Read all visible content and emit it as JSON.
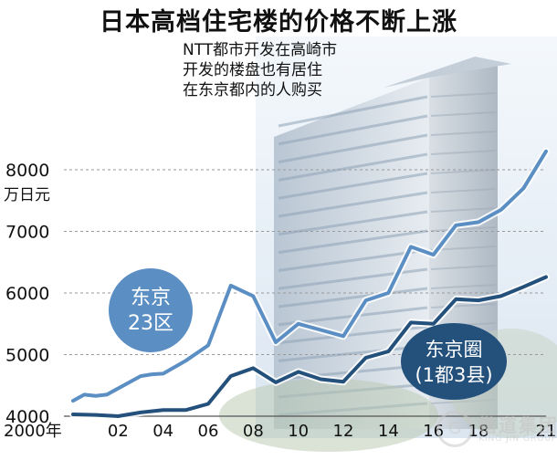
{
  "header": {
    "title": "日本高档住宅楼的价格不断上涨",
    "note_lines": [
      "NTT都市开发在高崎市",
      "开发的楼盘也有居住",
      "在东京都内的人购买"
    ]
  },
  "colors": {
    "tokyo23": "#5b8fc4",
    "tokyo_area": "#24507c",
    "grid": "#9a9a9a",
    "sky": "#dfe9f3"
  },
  "watermark": {
    "glyph": "G",
    "text": "楷道集团",
    "sub": "KING JIN GROUP"
  },
  "chart_data": {
    "type": "line",
    "title": "日本高档住宅楼的价格不断上涨",
    "ylabel": "万日元",
    "xlabel": "",
    "ylim": [
      4000,
      8000
    ],
    "xlim": [
      2000,
      2021
    ],
    "grid": true,
    "yticks": [
      4000,
      5000,
      6000,
      7000,
      8000
    ],
    "ytick_labels": [
      "4000",
      "5000",
      "6000",
      "7000",
      "8000"
    ],
    "xticks": [
      2000,
      2002,
      2004,
      2006,
      2008,
      2010,
      2012,
      2014,
      2016,
      2018,
      2021
    ],
    "xtick_labels": [
      "2000年",
      "02",
      "04",
      "06",
      "08",
      "10",
      "12",
      "14",
      "16",
      "18",
      "21"
    ],
    "series": [
      {
        "name": "东京23区",
        "label_lines": [
          "东京",
          "23区"
        ],
        "x": [
          2000,
          2000.5,
          2001,
          2001.5,
          2002,
          2003,
          2003.5,
          2004,
          2005,
          2006,
          2007,
          2008,
          2009,
          2010,
          2011,
          2012,
          2013,
          2014,
          2015,
          2016,
          2017,
          2018,
          2019,
          2020,
          2021
        ],
        "values": [
          4250,
          4350,
          4330,
          4350,
          4450,
          4650,
          4680,
          4690,
          4900,
          5150,
          6120,
          5950,
          5200,
          5500,
          5400,
          5300,
          5880,
          6000,
          6750,
          6620,
          7100,
          7150,
          7350,
          7700,
          8300
        ]
      },
      {
        "name": "东京圈(1都3县)",
        "label_lines": [
          "东京圈",
          "(1都3县)"
        ],
        "x": [
          2000,
          2001,
          2002,
          2003,
          2004,
          2005,
          2006,
          2007,
          2008,
          2009,
          2010,
          2011,
          2012,
          2013,
          2014,
          2015,
          2016,
          2017,
          2018,
          2019,
          2020,
          2021
        ],
        "values": [
          4030,
          4020,
          4000,
          4060,
          4100,
          4100,
          4200,
          4650,
          4780,
          4550,
          4720,
          4600,
          4560,
          4950,
          5050,
          5520,
          5500,
          5900,
          5880,
          5950,
          6100,
          6260
        ]
      }
    ]
  }
}
